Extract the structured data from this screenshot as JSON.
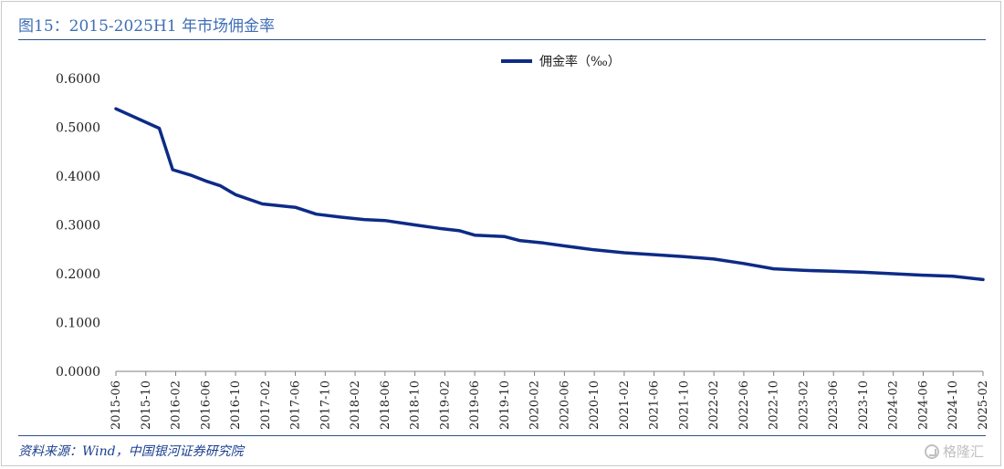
{
  "header": {
    "title": "图15：2015-2025H1 年市场佣金率"
  },
  "footer": {
    "source": "资料来源：Wind，中国银河证券研究院",
    "watermark": "格隆汇"
  },
  "colors": {
    "series": "#0d2b86",
    "title": "#3e6db5",
    "rule": "#2f4f8a"
  },
  "chart_data": {
    "type": "line",
    "title": "",
    "xlabel": "",
    "ylabel": "",
    "ylim": [
      0,
      0.6
    ],
    "yticks": [
      "0.6000",
      "0.5000",
      "0.4000",
      "0.3000",
      "0.2000",
      "0.1000",
      "0.0000"
    ],
    "grid": false,
    "legend_position": "top-center",
    "categories": [
      "2015-06",
      "2015-10",
      "2016-02",
      "2016-06",
      "2016-10",
      "2017-02",
      "2017-06",
      "2017-10",
      "2018-02",
      "2018-06",
      "2018-10",
      "2019-02",
      "2019-06",
      "2019-10",
      "2020-02",
      "2020-06",
      "2020-10",
      "2021-02",
      "2021-06",
      "2021-10",
      "2022-02",
      "2022-06",
      "2022-10",
      "2023-02",
      "2023-06",
      "2023-10",
      "2024-02",
      "2024-06",
      "2024-10",
      "2025-02"
    ],
    "series": [
      {
        "name": "佣金率（‰）",
        "points": [
          {
            "x": 0,
            "y": 0.538
          },
          {
            "x": 1.45,
            "y": 0.498
          },
          {
            "x": 1.9,
            "y": 0.413
          },
          {
            "x": 2.5,
            "y": 0.402
          },
          {
            "x": 3.0,
            "y": 0.39
          },
          {
            "x": 3.5,
            "y": 0.38
          },
          {
            "x": 4.0,
            "y": 0.362
          },
          {
            "x": 4.9,
            "y": 0.343
          },
          {
            "x": 6.0,
            "y": 0.336
          },
          {
            "x": 6.7,
            "y": 0.322
          },
          {
            "x": 7.5,
            "y": 0.316
          },
          {
            "x": 8.3,
            "y": 0.311
          },
          {
            "x": 9.0,
            "y": 0.309
          },
          {
            "x": 10.0,
            "y": 0.3
          },
          {
            "x": 10.8,
            "y": 0.293
          },
          {
            "x": 11.5,
            "y": 0.288
          },
          {
            "x": 12.0,
            "y": 0.279
          },
          {
            "x": 13.0,
            "y": 0.276
          },
          {
            "x": 13.5,
            "y": 0.268
          },
          {
            "x": 14.3,
            "y": 0.263
          },
          {
            "x": 15.0,
            "y": 0.257
          },
          {
            "x": 16.0,
            "y": 0.249
          },
          {
            "x": 17.0,
            "y": 0.243
          },
          {
            "x": 18.0,
            "y": 0.239
          },
          {
            "x": 19.0,
            "y": 0.235
          },
          {
            "x": 20.0,
            "y": 0.23
          },
          {
            "x": 21.0,
            "y": 0.221
          },
          {
            "x": 22.0,
            "y": 0.21
          },
          {
            "x": 23.0,
            "y": 0.207
          },
          {
            "x": 24.0,
            "y": 0.205
          },
          {
            "x": 25.0,
            "y": 0.203
          },
          {
            "x": 26.0,
            "y": 0.2
          },
          {
            "x": 27.0,
            "y": 0.197
          },
          {
            "x": 28.0,
            "y": 0.195
          },
          {
            "x": 29.0,
            "y": 0.188
          }
        ]
      }
    ]
  }
}
